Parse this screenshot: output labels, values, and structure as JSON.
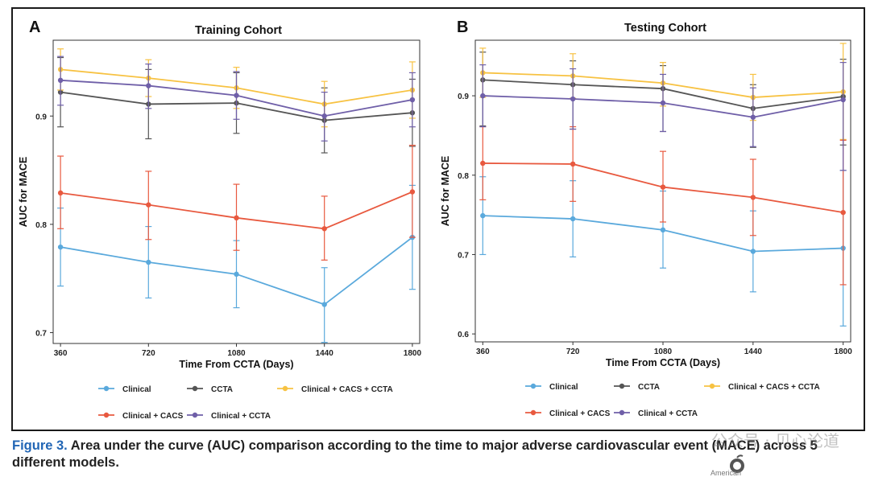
{
  "chart_data": [
    {
      "type": "line",
      "panel_label": "A",
      "title": "Training Cohort",
      "xlabel": "Time From CCTA (Days)",
      "ylabel": "AUC for MACE",
      "x": [
        360,
        720,
        1080,
        1440,
        1800
      ],
      "xlim": [
        330,
        1830
      ],
      "ylim": [
        0.69,
        0.97
      ],
      "yticks": [
        0.7,
        0.8,
        0.9
      ],
      "ytick_labels": [
        "0.7",
        "0.8",
        "0.9"
      ],
      "legend_position": "bottom",
      "series": [
        {
          "name": "Clinical",
          "color": "#5aa9dc",
          "values": [
            0.779,
            0.765,
            0.754,
            0.726,
            0.788
          ],
          "lower": [
            0.743,
            0.732,
            0.723,
            0.691,
            0.74
          ],
          "upper": [
            0.815,
            0.798,
            0.785,
            0.76,
            0.836
          ]
        },
        {
          "name": "CCTA",
          "color": "#555555",
          "values": [
            0.922,
            0.911,
            0.912,
            0.896,
            0.903
          ],
          "lower": [
            0.89,
            0.879,
            0.884,
            0.866,
            0.872
          ],
          "upper": [
            0.954,
            0.943,
            0.94,
            0.926,
            0.934
          ]
        },
        {
          "name": "Clinical + CACS + CCTA",
          "color": "#f7c242",
          "values": [
            0.943,
            0.935,
            0.926,
            0.911,
            0.924
          ],
          "lower": [
            0.924,
            0.918,
            0.907,
            0.89,
            0.898
          ],
          "upper": [
            0.962,
            0.952,
            0.945,
            0.932,
            0.95
          ]
        },
        {
          "name": "Clinical + CACS",
          "color": "#e8593f",
          "values": [
            0.829,
            0.818,
            0.806,
            0.796,
            0.83
          ],
          "lower": [
            0.796,
            0.786,
            0.776,
            0.767,
            0.788
          ],
          "upper": [
            0.863,
            0.849,
            0.837,
            0.826,
            0.873
          ]
        },
        {
          "name": "Clinical + CCTA",
          "color": "#6f5fa8",
          "values": [
            0.933,
            0.928,
            0.919,
            0.9,
            0.915
          ],
          "lower": [
            0.91,
            0.907,
            0.897,
            0.877,
            0.89
          ],
          "upper": [
            0.955,
            0.948,
            0.941,
            0.922,
            0.94
          ]
        }
      ]
    },
    {
      "type": "line",
      "panel_label": "B",
      "title": "Testing Cohort",
      "xlabel": "Time From CCTA (Days)",
      "ylabel": "AUC for MACE",
      "x": [
        360,
        720,
        1080,
        1440,
        1800
      ],
      "xlim": [
        330,
        1830
      ],
      "ylim": [
        0.59,
        0.97
      ],
      "yticks": [
        0.6,
        0.7,
        0.8,
        0.9
      ],
      "ytick_labels": [
        "0.6",
        "0.7",
        "0.8",
        "0.9"
      ],
      "legend_position": "bottom",
      "series": [
        {
          "name": "Clinical",
          "color": "#5aa9dc",
          "values": [
            0.749,
            0.745,
            0.731,
            0.704,
            0.708
          ],
          "lower": [
            0.7,
            0.697,
            0.683,
            0.653,
            0.61
          ],
          "upper": [
            0.798,
            0.793,
            0.78,
            0.755,
            0.806
          ]
        },
        {
          "name": "CCTA",
          "color": "#555555",
          "values": [
            0.92,
            0.914,
            0.909,
            0.884,
            0.899
          ],
          "lower": [
            0.862,
            0.858,
            0.855,
            0.835,
            0.838
          ],
          "upper": [
            0.955,
            0.944,
            0.938,
            0.914,
            0.946
          ]
        },
        {
          "name": "Clinical + CACS + CCTA",
          "color": "#f7c242",
          "values": [
            0.929,
            0.925,
            0.916,
            0.898,
            0.905
          ],
          "lower": [
            0.898,
            0.897,
            0.887,
            0.869,
            0.845
          ],
          "upper": [
            0.96,
            0.953,
            0.942,
            0.927,
            0.966
          ]
        },
        {
          "name": "Clinical + CACS",
          "color": "#e8593f",
          "values": [
            0.815,
            0.814,
            0.785,
            0.772,
            0.753
          ],
          "lower": [
            0.769,
            0.767,
            0.741,
            0.724,
            0.662
          ],
          "upper": [
            0.861,
            0.861,
            0.83,
            0.82,
            0.844
          ]
        },
        {
          "name": "Clinical + CCTA",
          "color": "#6f5fa8",
          "values": [
            0.9,
            0.896,
            0.891,
            0.873,
            0.895
          ],
          "lower": [
            0.861,
            0.858,
            0.855,
            0.836,
            0.806
          ],
          "upper": [
            0.939,
            0.934,
            0.927,
            0.91,
            0.942
          ]
        }
      ]
    }
  ],
  "caption": {
    "figure_label": "Figure 3.",
    "text": " Area under the curve (AUC) comparison according to the time to major adverse cardiovascular event (MACE) across 5 different models."
  },
  "watermark": "公众号 · 贝心论道",
  "logo_text": "American"
}
